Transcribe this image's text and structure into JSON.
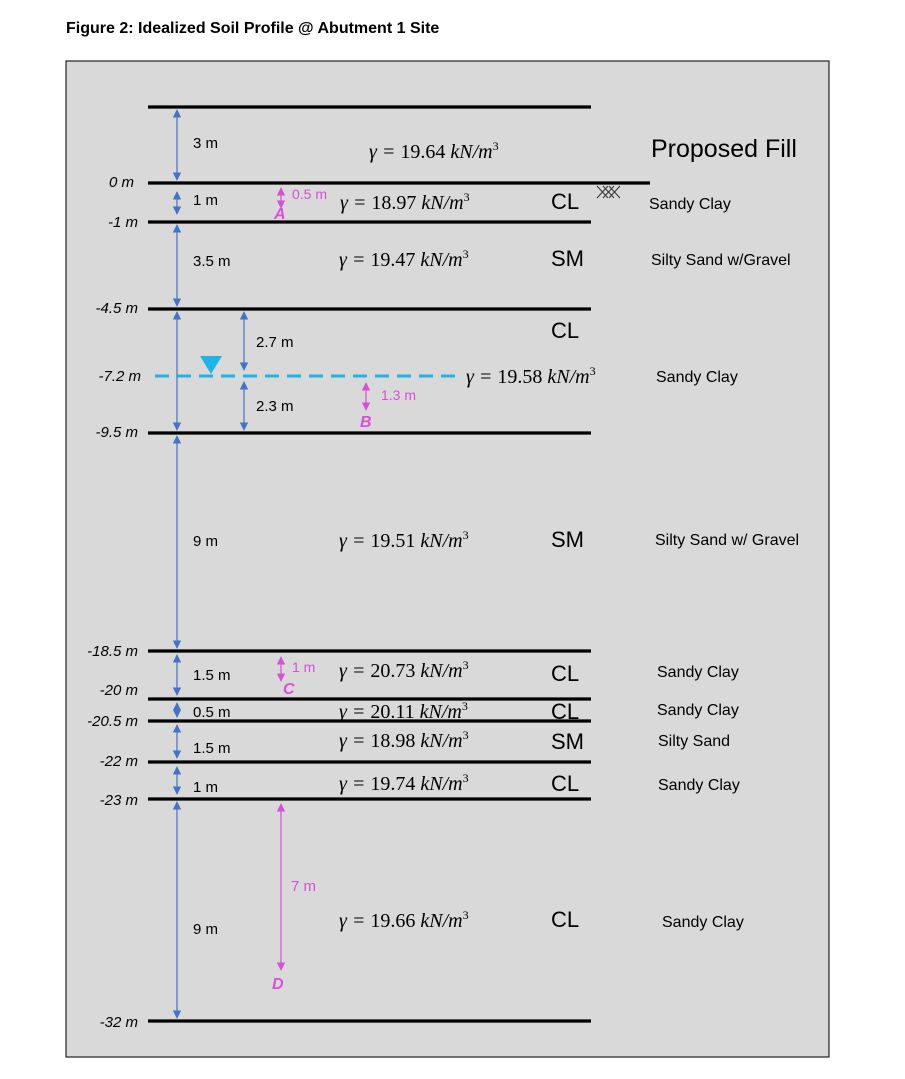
{
  "figure_title": "Figure 2: Idealized Soil Profile @ Abutment 1 Site",
  "colors": {
    "panel_bg": "#d9d9d9",
    "panel_border": "#222222",
    "layer_line": "#000000",
    "dimension_arrow": "#4472c4",
    "water_table": "#1fb4e6",
    "point_marker": "#d94fd9"
  },
  "depth_labels": [
    "0 m",
    "-1 m",
    "-4.5 m",
    "-7.2 m",
    "-9.5 m",
    "-18.5 m",
    "-20 m",
    "-20.5 m",
    "-22 m",
    "-23 m",
    "-32 m"
  ],
  "thickness_labels": [
    "3 m",
    "1 m",
    "3.5 m",
    "2.7 m",
    "2.3 m",
    "9 m",
    "1.5 m",
    "0.5 m",
    "1.5 m",
    "1 m",
    "9 m"
  ],
  "layers": [
    {
      "unit_weight": "19.64",
      "uscs": "",
      "description": "Proposed Fill"
    },
    {
      "unit_weight": "18.97",
      "uscs": "CL",
      "description": "Sandy Clay"
    },
    {
      "unit_weight": "19.47",
      "uscs": "SM",
      "description": "Silty Sand w/Gravel"
    },
    {
      "unit_weight": "19.58",
      "uscs": "CL",
      "description": "Sandy Clay"
    },
    {
      "unit_weight": "19.51",
      "uscs": "SM",
      "description": "Silty Sand w/ Gravel"
    },
    {
      "unit_weight": "20.73",
      "uscs": "CL",
      "description": "Sandy Clay"
    },
    {
      "unit_weight": "20.11",
      "uscs": "CL",
      "description": "Sandy Clay"
    },
    {
      "unit_weight": "18.98",
      "uscs": "SM",
      "description": "Silty Sand"
    },
    {
      "unit_weight": "19.74",
      "uscs": "CL",
      "description": "Sandy Clay"
    },
    {
      "unit_weight": "19.66",
      "uscs": "CL",
      "description": "Sandy Clay"
    }
  ],
  "gamma_symbol": "γ = ",
  "gamma_unit": "kN/m",
  "gamma_exponent": "3",
  "points": [
    {
      "label": "A",
      "distance": "0.5 m"
    },
    {
      "label": "B",
      "distance": "1.3 m"
    },
    {
      "label": "C",
      "distance": "1 m"
    },
    {
      "label": "D",
      "distance": "7 m"
    }
  ]
}
